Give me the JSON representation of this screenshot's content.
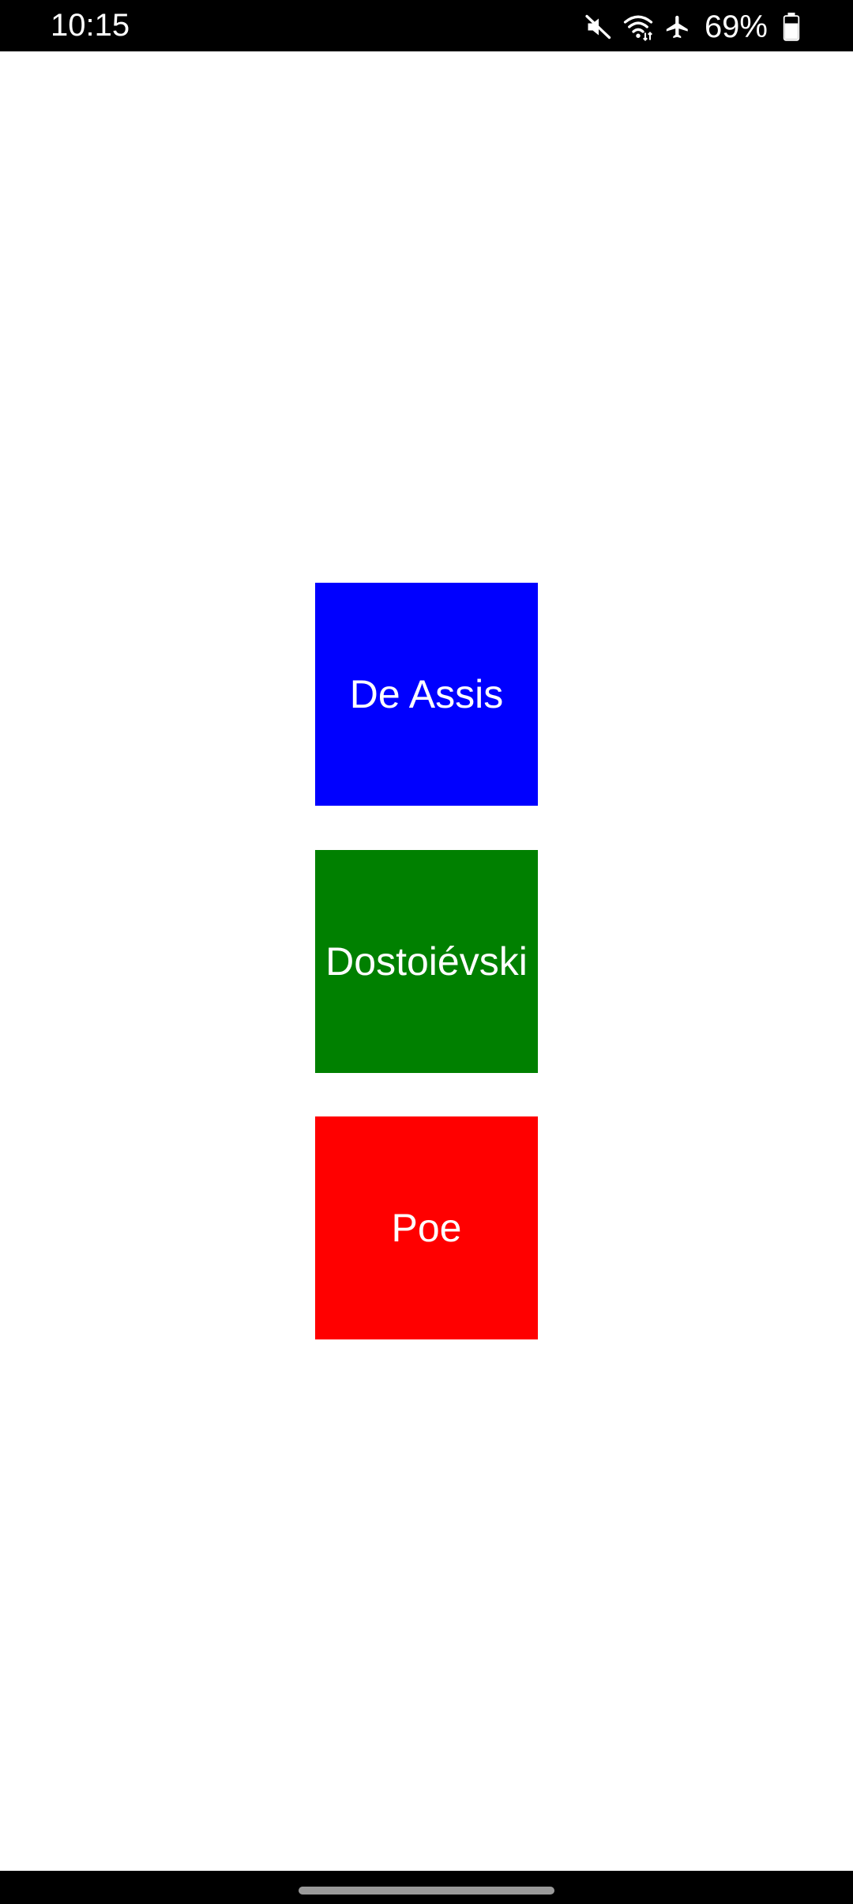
{
  "status_bar": {
    "time": "10:15",
    "battery_percent": "69%",
    "icons": [
      "mute-icon",
      "wifi-icon",
      "airplane-mode-icon",
      "battery-icon"
    ],
    "battery_level": 0.69
  },
  "tiles": [
    {
      "label": "De Assis",
      "color": "#0000ff"
    },
    {
      "label": "Dostoiévski",
      "color": "#008000"
    },
    {
      "label": "Poe",
      "color": "#ff0000"
    }
  ],
  "colors": {
    "status_bar_bg": "#000000",
    "page_bg": "#ffffff",
    "nav_bar_bg": "#000000"
  }
}
